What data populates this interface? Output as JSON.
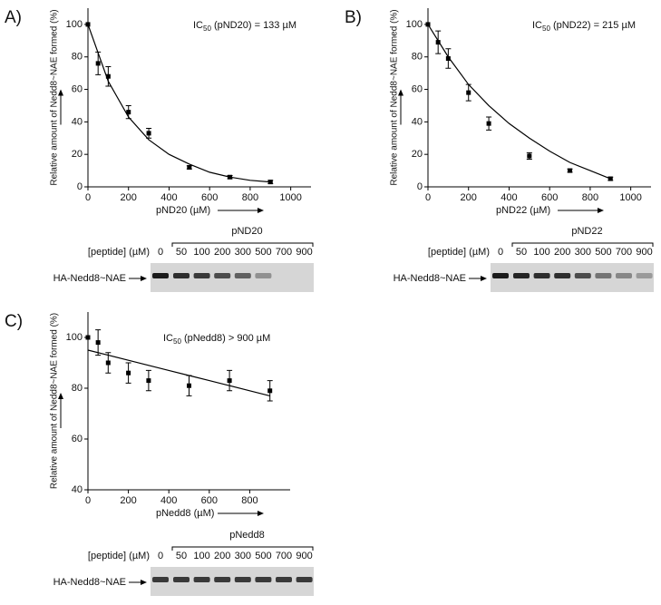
{
  "chart_data": [
    {
      "type": "scatter",
      "panel": "A)",
      "annotation": {
        "main": "IC",
        "sub": "50",
        "rest": " (pND20) = 133 µM"
      },
      "xlabel": "pND20 (µM)",
      "ylabel": "Relative amount of Nedd8~NAE formed (%)",
      "x": [
        0,
        50,
        100,
        200,
        300,
        500,
        700,
        900
      ],
      "values": [
        100,
        76,
        68,
        46,
        33,
        12,
        6,
        3
      ],
      "errors": [
        0,
        7,
        6,
        4,
        3,
        1,
        1,
        1
      ],
      "fit": {
        "x": [
          0,
          100,
          200,
          300,
          400,
          500,
          600,
          700,
          800,
          900
        ],
        "values": [
          100,
          65,
          43,
          29,
          20,
          14,
          9,
          6,
          4,
          3
        ]
      },
      "xlim": [
        0,
        1100
      ],
      "xticks": [
        0,
        200,
        400,
        600,
        800,
        1000
      ],
      "ylim": [
        0,
        110
      ],
      "yticks": [
        0,
        20,
        40,
        60,
        80,
        100
      ],
      "blot": {
        "group": "pND20",
        "row_label": "[peptide] (µM)",
        "lanes": [
          "0",
          "50",
          "100",
          "200",
          "300",
          "500",
          "700",
          "900"
        ],
        "band_label": "HA-Nedd8~NAE"
      }
    },
    {
      "type": "scatter",
      "panel": "B)",
      "annotation": {
        "main": "IC",
        "sub": "50",
        "rest": " (pND22) = 215 µM"
      },
      "xlabel": "pND22 (µM)",
      "ylabel": "Relative amount of Nedd8~NAE formed (%)",
      "x": [
        0,
        50,
        100,
        200,
        300,
        500,
        700,
        900
      ],
      "values": [
        100,
        89,
        79,
        58,
        39,
        19,
        10,
        5
      ],
      "errors": [
        0,
        7,
        6,
        5,
        4,
        2,
        1,
        1
      ],
      "fit": {
        "x": [
          0,
          100,
          200,
          300,
          400,
          500,
          600,
          700,
          800,
          900
        ],
        "values": [
          100,
          80,
          63,
          50,
          39,
          30,
          22,
          15,
          10,
          5
        ]
      },
      "xlim": [
        0,
        1100
      ],
      "xticks": [
        0,
        200,
        400,
        600,
        800,
        1000
      ],
      "ylim": [
        0,
        110
      ],
      "yticks": [
        0,
        20,
        40,
        60,
        80,
        100
      ],
      "blot": {
        "group": "pND22",
        "row_label": "[peptide] (µM)",
        "lanes": [
          "0",
          "50",
          "100",
          "200",
          "300",
          "500",
          "700",
          "900"
        ],
        "band_label": "HA-Nedd8~NAE"
      }
    },
    {
      "type": "scatter",
      "panel": "C)",
      "annotation": {
        "main": "IC",
        "sub": "50",
        "rest": " (pNedd8) > 900 µM"
      },
      "xlabel": "pNedd8 (µM)",
      "ylabel": "Relative amount of Nedd8~NAE formed (%)",
      "x": [
        0,
        50,
        100,
        200,
        300,
        500,
        700,
        900
      ],
      "values": [
        100,
        98,
        90,
        86,
        83,
        81,
        83,
        79
      ],
      "errors": [
        0,
        5,
        4,
        4,
        4,
        4,
        4,
        4
      ],
      "fit": {
        "x": [
          0,
          100,
          200,
          300,
          400,
          500,
          600,
          700,
          800,
          900
        ],
        "values": [
          95,
          93,
          91,
          89,
          87,
          85,
          83,
          81,
          79,
          77
        ]
      },
      "xlim": [
        0,
        1000
      ],
      "xticks": [
        0,
        200,
        400,
        600,
        800
      ],
      "ylim": [
        40,
        110
      ],
      "yticks": [
        40,
        60,
        80,
        100
      ],
      "blot": {
        "group": "pNedd8",
        "row_label": "[peptide] (µM)",
        "lanes": [
          "0",
          "50",
          "100",
          "200",
          "300",
          "500",
          "700",
          "900"
        ],
        "band_label": "HA-Nedd8~NAE"
      }
    }
  ]
}
